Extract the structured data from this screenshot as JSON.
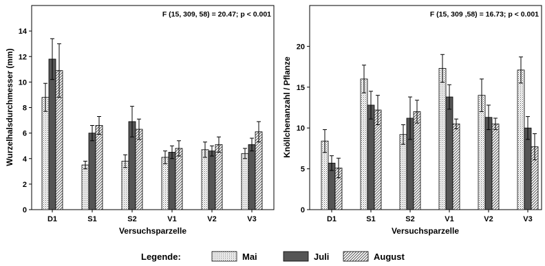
{
  "legend": {
    "title": "Legende:",
    "items": [
      {
        "name": "Mai",
        "pattern": "dots"
      },
      {
        "name": "Juli",
        "pattern": "solid"
      },
      {
        "name": "August",
        "pattern": "hatch"
      }
    ]
  },
  "colors": {
    "solid_fill": "#555555",
    "pattern_ink": "#555555",
    "frame": "#000000"
  },
  "chart_data": [
    {
      "type": "bar",
      "stat_text": "F (15, 309, 58) = 20.47; p < 0.001",
      "xlabel": "Versuchsparzelle",
      "ylabel": "Wurzelhalsdurchmesser (mm)",
      "ylim": [
        0,
        16
      ],
      "yticks": [
        0,
        2,
        4,
        6,
        8,
        10,
        12,
        14
      ],
      "grid": false,
      "categories": [
        "D1",
        "S1",
        "S2",
        "V1",
        "V2",
        "V3"
      ],
      "series": [
        {
          "name": "Mai",
          "values": [
            8.8,
            3.5,
            3.8,
            4.1,
            4.7,
            4.4
          ],
          "errors": [
            1.1,
            0.3,
            0.5,
            0.5,
            0.6,
            0.4
          ]
        },
        {
          "name": "Juli",
          "values": [
            11.8,
            6.0,
            6.9,
            4.5,
            4.6,
            5.1
          ],
          "errors": [
            1.6,
            0.6,
            1.2,
            0.5,
            0.4,
            0.5
          ]
        },
        {
          "name": "August",
          "values": [
            10.9,
            6.6,
            6.3,
            4.8,
            5.1,
            6.1
          ],
          "errors": [
            2.1,
            0.7,
            0.8,
            0.6,
            0.6,
            0.8
          ]
        }
      ]
    },
    {
      "type": "bar",
      "stat_text": "F (15, 309 ,58) = 16.73; p < 0.001",
      "xlabel": "Versuchsparzelle",
      "ylabel": "Knöllchenanzahl / Pflanze",
      "ylim": [
        0,
        25
      ],
      "yticks": [
        0,
        5,
        10,
        15,
        20
      ],
      "grid": false,
      "categories": [
        "D1",
        "S1",
        "S2",
        "V1",
        "V2",
        "V3"
      ],
      "series": [
        {
          "name": "Mai",
          "values": [
            8.4,
            16.0,
            9.2,
            17.3,
            14.0,
            17.1
          ],
          "errors": [
            1.4,
            1.7,
            1.2,
            1.7,
            2.0,
            1.6
          ]
        },
        {
          "name": "Juli",
          "values": [
            5.7,
            12.8,
            11.2,
            13.8,
            11.3,
            10.0
          ],
          "errors": [
            0.9,
            1.7,
            2.6,
            1.5,
            1.5,
            1.4
          ]
        },
        {
          "name": "August",
          "values": [
            5.1,
            12.2,
            12.0,
            10.5,
            10.5,
            7.7
          ],
          "errors": [
            1.2,
            1.8,
            1.4,
            0.6,
            0.7,
            1.6
          ]
        }
      ]
    }
  ]
}
